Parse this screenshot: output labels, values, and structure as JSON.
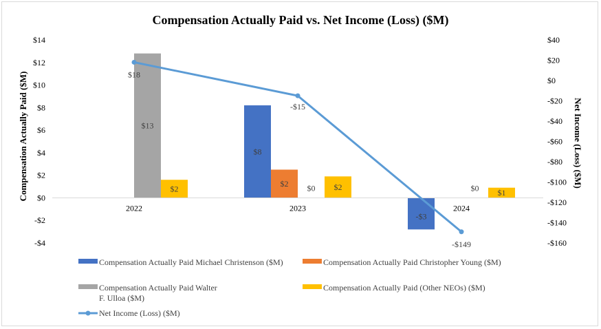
{
  "chart_data": {
    "type": "bar",
    "title": "Compensation Actually Paid vs. Net Income (Loss) ($M)",
    "ylabel": "Compensation Actually Paid ($M)",
    "y2label": "Net Income (Loss) ($M)",
    "categories": [
      "2022",
      "2023",
      "2024"
    ],
    "ylim": [
      -4,
      14
    ],
    "yticks": [
      -4,
      -2,
      0,
      2,
      4,
      6,
      8,
      10,
      12,
      14
    ],
    "ytick_labels": [
      "-$4",
      "-$2",
      "$0",
      "$2",
      "$4",
      "$6",
      "$8",
      "$10",
      "$12",
      "$14"
    ],
    "y2lim": [
      -160,
      40
    ],
    "y2ticks": [
      -160,
      -140,
      -120,
      -100,
      -80,
      -60,
      -40,
      -20,
      0,
      20,
      40
    ],
    "y2tick_labels": [
      "-$160",
      "-$140",
      "-$120",
      "-$100",
      "-$80",
      "-$60",
      "-$40",
      "-$20",
      "$0",
      "$20",
      "$40"
    ],
    "series": [
      {
        "name": "Compensation Actually Paid Michael Christenson ($M)",
        "color": "#4472c4",
        "values": [
          null,
          8.2,
          -2.8
        ],
        "labels": [
          "",
          "$8",
          "-$3"
        ]
      },
      {
        "name": "Compensation Actually Paid Christopher Young ($M)",
        "color": "#ed7d31",
        "values": [
          null,
          2.5,
          null
        ],
        "labels": [
          "",
          "$2",
          ""
        ]
      },
      {
        "name": "Compensation Actually Paid Walter F. Ulloa ($M)",
        "legend_lines": [
          "Compensation Actually Paid Walter",
          "F. Ulloa ($M)"
        ],
        "color": "#a5a5a5",
        "values": [
          12.8,
          0,
          0
        ],
        "labels": [
          "$13",
          "$0",
          "$0"
        ]
      },
      {
        "name": "Compensation Actually Paid (Other NEOs) ($M)",
        "color": "#ffc000",
        "values": [
          1.6,
          1.9,
          0.9
        ],
        "labels": [
          "$2",
          "$2",
          "$1"
        ]
      }
    ],
    "line_series": {
      "name": "Net Income (Loss) ($M)",
      "color": "#5b9bd5",
      "axis": "secondary",
      "values": [
        18,
        -15,
        -149
      ],
      "labels": [
        "$18",
        "-$15",
        "-$149"
      ]
    }
  }
}
